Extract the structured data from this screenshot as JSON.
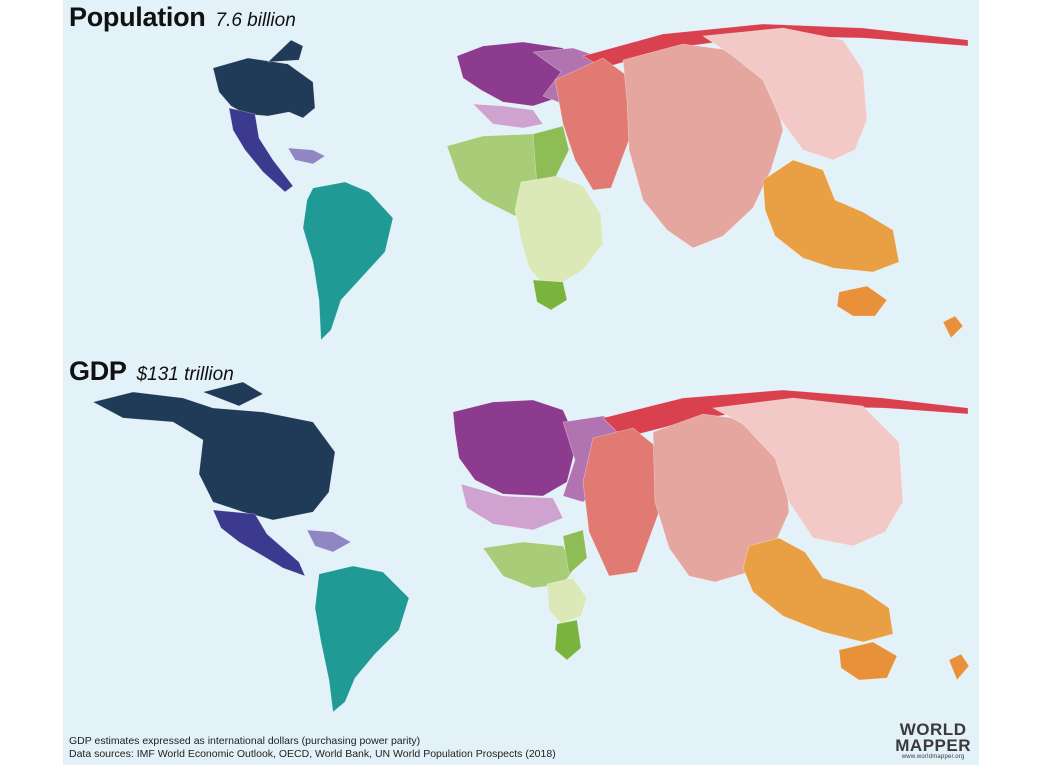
{
  "maps": [
    {
      "title": "Population",
      "value": "7.6 billion"
    },
    {
      "title": "GDP",
      "value": "$131 trillion"
    }
  ],
  "footnote": {
    "line1": "GDP estimates expressed as international dollars (purchasing power parity)",
    "line2": "Data sources: IMF World Economic Outlook, OECD, World Bank, UN World Population Prospects (2018)"
  },
  "logo": {
    "line1": "WORLD",
    "line2": "MAPPER",
    "url": "www.worldmapper.org"
  },
  "colors": {
    "ocean": "#e3f1f8",
    "north_america": "#1f3b58",
    "central_america": "#3b3a8f",
    "caribbean": "#8f86c4",
    "south_america": "#1f9a94",
    "western_europe": "#8c3b8e",
    "eastern_europe": "#b274b0",
    "southern_europe": "#cfa2cf",
    "north_africa": "#a8cc78",
    "middle_east": "#8fbd55",
    "sub_saharan_africa": "#dbe8b8",
    "southern_africa": "#7ab33d",
    "russia_arctic": "#d9414f",
    "south_asia": "#e07a72",
    "east_asia": "#f2c9c6",
    "china": "#e5a6a0",
    "southeast_asia": "#e9a044",
    "oceania": "#e9903a"
  }
}
